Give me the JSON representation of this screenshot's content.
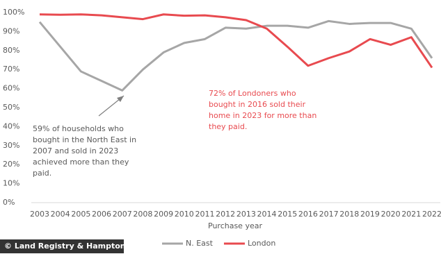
{
  "chart_data": {
    "type": "line",
    "x_label": "Purchase year",
    "categories": [
      "2003",
      "2004",
      "2005",
      "2006",
      "2007",
      "2008",
      "2009",
      "2010",
      "2011",
      "2012",
      "2013",
      "2014",
      "2015",
      "2016",
      "2017",
      "2018",
      "2019",
      "2020",
      "2021",
      "2022"
    ],
    "series": [
      {
        "name": "N. East",
        "color": "#a6a6a6",
        "values": [
          95,
          82,
          69,
          64,
          59,
          70,
          79,
          84,
          86,
          92,
          91.5,
          93,
          93,
          92,
          95.5,
          94,
          94.5,
          94.5,
          91.5,
          76
        ]
      },
      {
        "name": "London",
        "color": "#e84a4f",
        "values": [
          99,
          98.8,
          99,
          98.5,
          97.5,
          96.5,
          99,
          98.3,
          98.5,
          97.5,
          96,
          91.5,
          82,
          72,
          76,
          79.5,
          86,
          83,
          87,
          71
        ]
      }
    ],
    "ylim": [
      0,
      100
    ],
    "yticks": [
      {
        "value": 0,
        "label": "0%"
      },
      {
        "value": 10,
        "label": "10%"
      },
      {
        "value": 20,
        "label": "20%"
      },
      {
        "value": 30,
        "label": "30%"
      },
      {
        "value": 40,
        "label": "40%"
      },
      {
        "value": 50,
        "label": "50%"
      },
      {
        "value": 60,
        "label": "60%"
      },
      {
        "value": 70,
        "label": "70%"
      },
      {
        "value": 80,
        "label": "80%"
      },
      {
        "value": 90,
        "label": "90%"
      },
      {
        "value": 100,
        "label": "100%"
      }
    ],
    "annotations": [
      {
        "lines": [
          "59% of households who",
          "bought in the North East in",
          "2007 and sold in 2023",
          "achieved more than they",
          "paid."
        ]
      },
      {
        "lines": [
          "72% of Londoners who",
          "bought in 2016 sold their",
          "home in 2023 for more than",
          "they paid."
        ]
      }
    ],
    "source": "© Land Registry & Hamptons"
  }
}
